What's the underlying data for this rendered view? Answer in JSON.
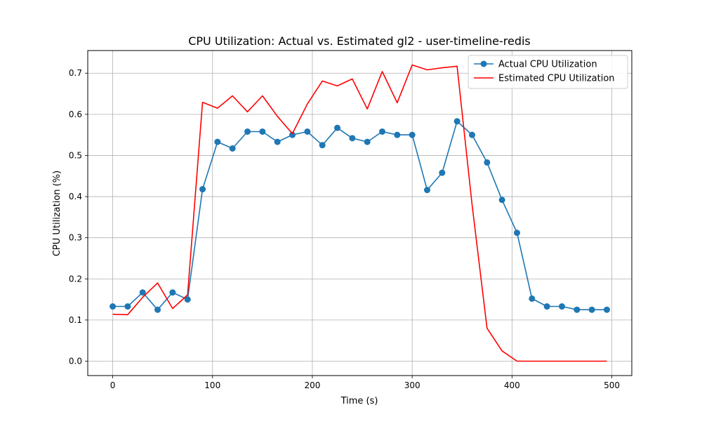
{
  "chart_data": {
    "type": "line",
    "title": "CPU Utilization: Actual vs. Estimated gl2 - user-timeline-redis",
    "xlabel": "Time (s)",
    "ylabel": "CPU Utilization (%)",
    "xlim": [
      -25,
      520
    ],
    "ylim": [
      -0.035,
      0.755
    ],
    "xticks": [
      0,
      100,
      200,
      300,
      400,
      500
    ],
    "yticks": [
      0.0,
      0.1,
      0.2,
      0.3,
      0.4,
      0.5,
      0.6,
      0.7
    ],
    "grid": true,
    "legend_position": "top-right",
    "series": [
      {
        "name": "Actual CPU Utilization",
        "color": "#1f77b4",
        "marker": "circle",
        "x": [
          0,
          15,
          30,
          45,
          60,
          75,
          90,
          105,
          120,
          135,
          150,
          165,
          180,
          195,
          210,
          225,
          240,
          255,
          270,
          285,
          300,
          315,
          330,
          345,
          360,
          375,
          390,
          405,
          420,
          435,
          450,
          465,
          480,
          495
        ],
        "y": [
          0.133,
          0.133,
          0.167,
          0.125,
          0.167,
          0.15,
          0.418,
          0.533,
          0.517,
          0.558,
          0.558,
          0.533,
          0.55,
          0.558,
          0.525,
          0.567,
          0.542,
          0.533,
          0.558,
          0.55,
          0.55,
          0.416,
          0.458,
          0.583,
          0.55,
          0.483,
          0.392,
          0.312,
          0.152,
          0.133,
          0.133,
          0.125,
          0.125,
          0.125
        ]
      },
      {
        "name": "Estimated CPU Utilization",
        "color": "#ff0000",
        "marker": "none",
        "x": [
          0,
          15,
          30,
          45,
          60,
          75,
          90,
          105,
          120,
          135,
          150,
          165,
          180,
          195,
          210,
          225,
          240,
          255,
          270,
          285,
          300,
          315,
          330,
          345,
          360,
          375,
          390,
          405,
          420,
          435,
          450,
          465,
          480,
          495
        ],
        "y": [
          0.114,
          0.113,
          0.155,
          0.19,
          0.128,
          0.161,
          0.629,
          0.615,
          0.645,
          0.606,
          0.645,
          0.595,
          0.553,
          0.625,
          0.681,
          0.669,
          0.686,
          0.613,
          0.704,
          0.628,
          0.72,
          0.708,
          0.713,
          0.717,
          0.38,
          0.08,
          0.025,
          0.0,
          0.0,
          0.0,
          0.0,
          0.0,
          0.0,
          0.0
        ]
      }
    ]
  }
}
